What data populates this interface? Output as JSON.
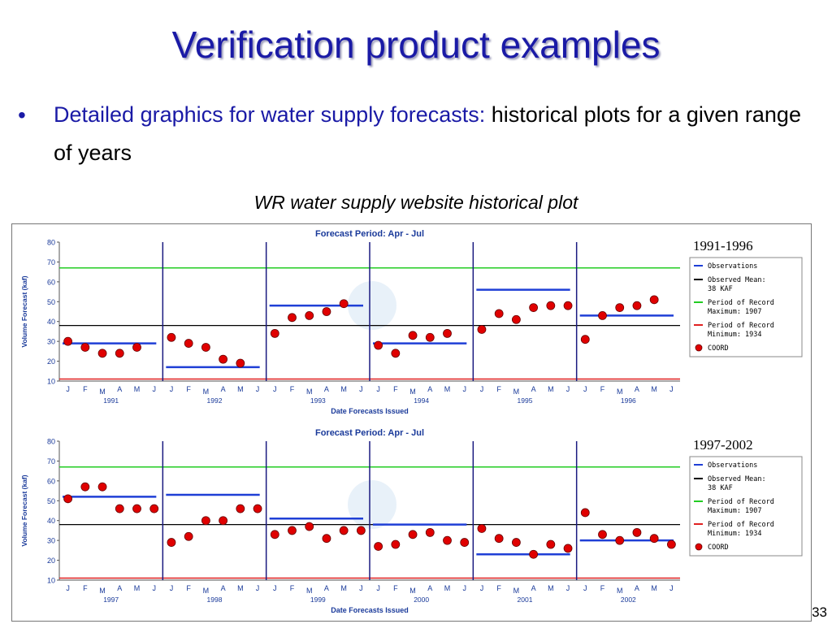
{
  "slide": {
    "title": "Verification product examples",
    "bullet_lead": "Detailed graphics for water supply forecasts:",
    "bullet_rest": " historical plots for a given range of years",
    "caption": "WR water supply website historical plot",
    "page_number": "33"
  },
  "legend": [
    {
      "label": [
        "Observations"
      ],
      "kind": "line",
      "color": "#1f3fd6"
    },
    {
      "label": [
        "Observed Mean:",
        "38 KAF"
      ],
      "kind": "line",
      "color": "#000000"
    },
    {
      "label": [
        "Period of Record",
        "Maximum: 1907"
      ],
      "kind": "line",
      "color": "#22cc22"
    },
    {
      "label": [
        "Period of Record",
        "Minimum: 1934"
      ],
      "kind": "line",
      "color": "#e02020"
    },
    {
      "label": [
        "COORD"
      ],
      "kind": "dot",
      "color": "#e00000"
    }
  ],
  "colors": {
    "observations": "#1f3fd6",
    "mean": "#000000",
    "max": "#22cc22",
    "min": "#e02020",
    "forecast": "#e00000",
    "divider": "#1a1a80"
  },
  "chart_data": [
    {
      "type": "scatter",
      "title": "Forecast Period: Apr - Jul",
      "range_label": "1991-1996",
      "xlabel": "Date Forecasts Issued",
      "ylabel": "Volume Forecast (kaf)",
      "ylim": [
        10,
        80
      ],
      "yticks": [
        10,
        20,
        30,
        40,
        50,
        60,
        70,
        80
      ],
      "month_labels": [
        "J",
        "F",
        "M",
        "A",
        "M",
        "J"
      ],
      "observed_mean": 38,
      "period_max": 67,
      "period_min": 11,
      "years": [
        {
          "year": "1991",
          "observed": 29,
          "forecasts": [
            30,
            27,
            24,
            24,
            27
          ]
        },
        {
          "year": "1992",
          "observed": 17,
          "forecasts": [
            32,
            29,
            27,
            21,
            19
          ]
        },
        {
          "year": "1993",
          "observed": 48,
          "forecasts": [
            34,
            42,
            43,
            45,
            49
          ]
        },
        {
          "year": "1994",
          "observed": 29,
          "forecasts": [
            28,
            24,
            33,
            32,
            34
          ]
        },
        {
          "year": "1995",
          "observed": 56,
          "forecasts": [
            36,
            44,
            41,
            47,
            48,
            48
          ]
        },
        {
          "year": "1996",
          "observed": 43,
          "forecasts": [
            31,
            43,
            47,
            48,
            51
          ]
        }
      ]
    },
    {
      "type": "scatter",
      "title": "Forecast Period: Apr - Jul",
      "range_label": "1997-2002",
      "xlabel": "Date Forecasts Issued",
      "ylabel": "Volume Forecast (kaf)",
      "ylim": [
        10,
        80
      ],
      "yticks": [
        10,
        20,
        30,
        40,
        50,
        60,
        70,
        80
      ],
      "month_labels": [
        "J",
        "F",
        "M",
        "A",
        "M",
        "J"
      ],
      "observed_mean": 38,
      "period_max": 67,
      "period_min": 11,
      "years": [
        {
          "year": "1997",
          "observed": 52,
          "forecasts": [
            51,
            57,
            57,
            46,
            46,
            46
          ]
        },
        {
          "year": "1998",
          "observed": 53,
          "forecasts": [
            29,
            32,
            40,
            40,
            46,
            46
          ]
        },
        {
          "year": "1999",
          "observed": 41,
          "forecasts": [
            33,
            35,
            37,
            31,
            35,
            35
          ]
        },
        {
          "year": "2000",
          "observed": 38,
          "forecasts": [
            27,
            28,
            33,
            34,
            30,
            29
          ]
        },
        {
          "year": "2001",
          "observed": 23,
          "forecasts": [
            36,
            31,
            29,
            23,
            28,
            26
          ]
        },
        {
          "year": "2002",
          "observed": 30,
          "forecasts": [
            44,
            33,
            30,
            34,
            31,
            28
          ]
        }
      ]
    }
  ]
}
